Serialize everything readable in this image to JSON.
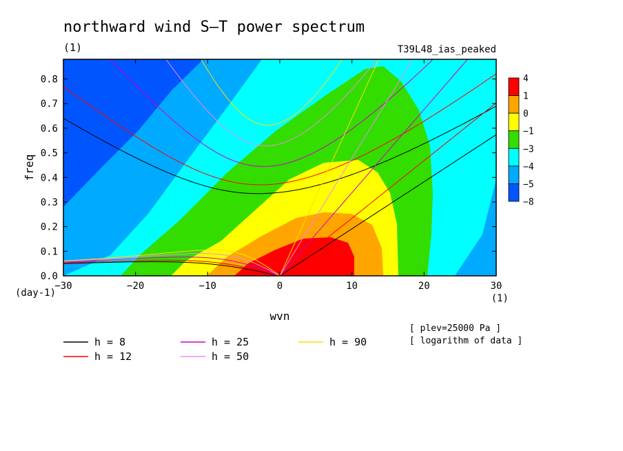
{
  "chart_data": {
    "type": "heatmap",
    "title": "northward wind S–T power spectrum",
    "subtitle": "(1)",
    "run_label": "T39L48_ias_peaked",
    "xlabel": "wvn",
    "ylabel": "freq",
    "x_unit": "(1)",
    "y_unit": "(day-1)",
    "xlim": [
      -30,
      30
    ],
    "ylim": [
      0,
      0.88
    ],
    "xticks": [
      -30,
      -20,
      -10,
      0,
      10,
      20,
      30
    ],
    "xtick_labels": [
      "−30",
      "−20",
      "−10",
      "0",
      "10",
      "20",
      "30"
    ],
    "yticks": [
      0,
      0.1,
      0.2,
      0.3,
      0.4,
      0.5,
      0.6,
      0.7,
      0.8
    ],
    "ytick_labels": [
      "0.0",
      "0.1",
      "0.2",
      "0.3",
      "0.4",
      "0.5",
      "0.6",
      "0.7",
      "0.8"
    ],
    "colorbar": {
      "labels": [
        "4",
        "1",
        "0",
        "−1",
        "−3",
        "−4",
        "−5",
        "−8"
      ],
      "levels": [
        4,
        1,
        0,
        -1,
        -3,
        -4,
        -5,
        -8
      ],
      "colors": [
        "#ff0000",
        "#ffa500",
        "#ffff00",
        "#33dd00",
        "#00ffff",
        "#00aaff",
        "#0055ff"
      ]
    },
    "legend": [
      {
        "label": "h =  8",
        "h": 8,
        "color": "#000000"
      },
      {
        "label": "h = 12",
        "h": 12,
        "color": "#ff0000"
      },
      {
        "label": "h = 25",
        "h": 25,
        "color": "#cc00cc"
      },
      {
        "label": "h = 50",
        "h": 50,
        "color": "#ee88ee"
      },
      {
        "label": "h = 90",
        "h": 90,
        "color": "#ffdd00"
      }
    ],
    "notes": [
      "[ plev=25000 Pa ]",
      "[ logarithm of data ]"
    ]
  }
}
